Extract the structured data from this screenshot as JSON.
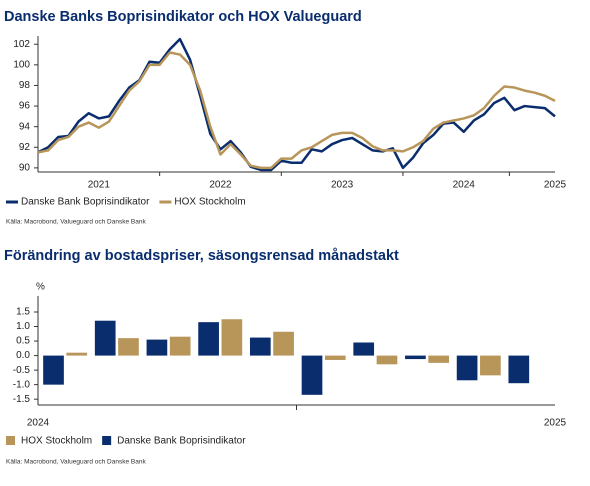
{
  "chart_data": [
    {
      "type": "line",
      "title": "Danske Banks Boprisindikator och HOX Valueguard",
      "categories": [
        null,
        null,
        null,
        null,
        null,
        null,
        "2021",
        null,
        null,
        null,
        null,
        null,
        null,
        null,
        null,
        null,
        null,
        null,
        "2022",
        null,
        null,
        null,
        null,
        null,
        null,
        null,
        null,
        null,
        null,
        null,
        "2023",
        null,
        null,
        null,
        null,
        null,
        null,
        null,
        null,
        null,
        null,
        null,
        "2024",
        null,
        null,
        null,
        null,
        null,
        null,
        null,
        null,
        "2025"
      ],
      "series": [
        {
          "name": "Danske Bank Boprisindikator",
          "color": "#0a2d6e",
          "values": [
            91.5,
            92,
            93,
            93.1,
            94.5,
            95.3,
            94.8,
            95,
            96.5,
            97.8,
            98.5,
            100.3,
            100.2,
            101.5,
            102.5,
            100.5,
            97,
            93.3,
            91.8,
            92.6,
            91.5,
            90.1,
            89.8,
            89.8,
            90.7,
            90.5,
            90.5,
            91.8,
            91.6,
            92.3,
            92.7,
            92.9,
            92.3,
            91.7,
            91.6,
            91.9,
            90.0,
            91,
            92.4,
            93.2,
            94.3,
            94.4,
            93.5,
            94.6,
            95.2,
            96.3,
            96.8,
            95.6,
            96,
            95.9,
            95.8,
            95.0
          ]
        },
        {
          "name": "HOX Stockholm",
          "color": "#b8965a",
          "values": [
            91.5,
            91.7,
            92.7,
            93,
            94,
            94.4,
            93.9,
            94.5,
            96,
            97.5,
            98.4,
            100,
            100,
            101.2,
            101,
            100,
            97.5,
            94,
            91.3,
            92.3,
            91.3,
            90.2,
            90,
            90,
            90.9,
            90.9,
            91.7,
            92,
            92.6,
            93.2,
            93.4,
            93.4,
            92.9,
            92.1,
            91.7,
            91.7,
            91.6,
            92.0,
            92.6,
            93.8,
            94.4,
            94.6,
            94.8,
            95.1,
            95.8,
            97,
            97.9,
            97.8,
            97.5,
            97.3,
            97,
            96.5
          ]
        }
      ],
      "ylim": [
        89.6,
        102.8
      ],
      "yticks": [
        90,
        92,
        94,
        96,
        98,
        100,
        102
      ],
      "source": "Källa: Macrobond, Valueguard och Danske Bank"
    },
    {
      "type": "bar",
      "title": "Förändring av bostadspriser, säsongsrensad månadstakt",
      "y_label": "%",
      "categories": [
        null,
        null,
        null,
        null,
        null,
        null,
        null,
        null,
        null,
        null
      ],
      "x_labels": [
        "2024",
        "2025"
      ],
      "series": [
        {
          "name": "HOX Stockholm",
          "color": "#b8965a",
          "values": [
            0.1,
            0.6,
            0.65,
            1.25,
            0.82,
            -0.15,
            -0.3,
            -0.25,
            -0.68,
            null
          ]
        },
        {
          "name": "Danske Bank Boprisindikator",
          "color": "#0a2d6e",
          "values": [
            -1.0,
            1.2,
            0.55,
            1.15,
            0.62,
            -1.35,
            0.45,
            -0.12,
            -0.85,
            -0.95
          ]
        }
      ],
      "ylim": [
        -1.7,
        2.05
      ],
      "yticks": [
        1.5,
        {
          "value": 1,
          "label": "1.0"
        },
        0.5,
        {
          "value": 0,
          "label": "0.0"
        },
        -0.5,
        {
          "value": -1,
          "label": "-1.0"
        },
        -1.5
      ],
      "source": "Källa: Macrobond, Valueguard och Danske Bank"
    }
  ]
}
